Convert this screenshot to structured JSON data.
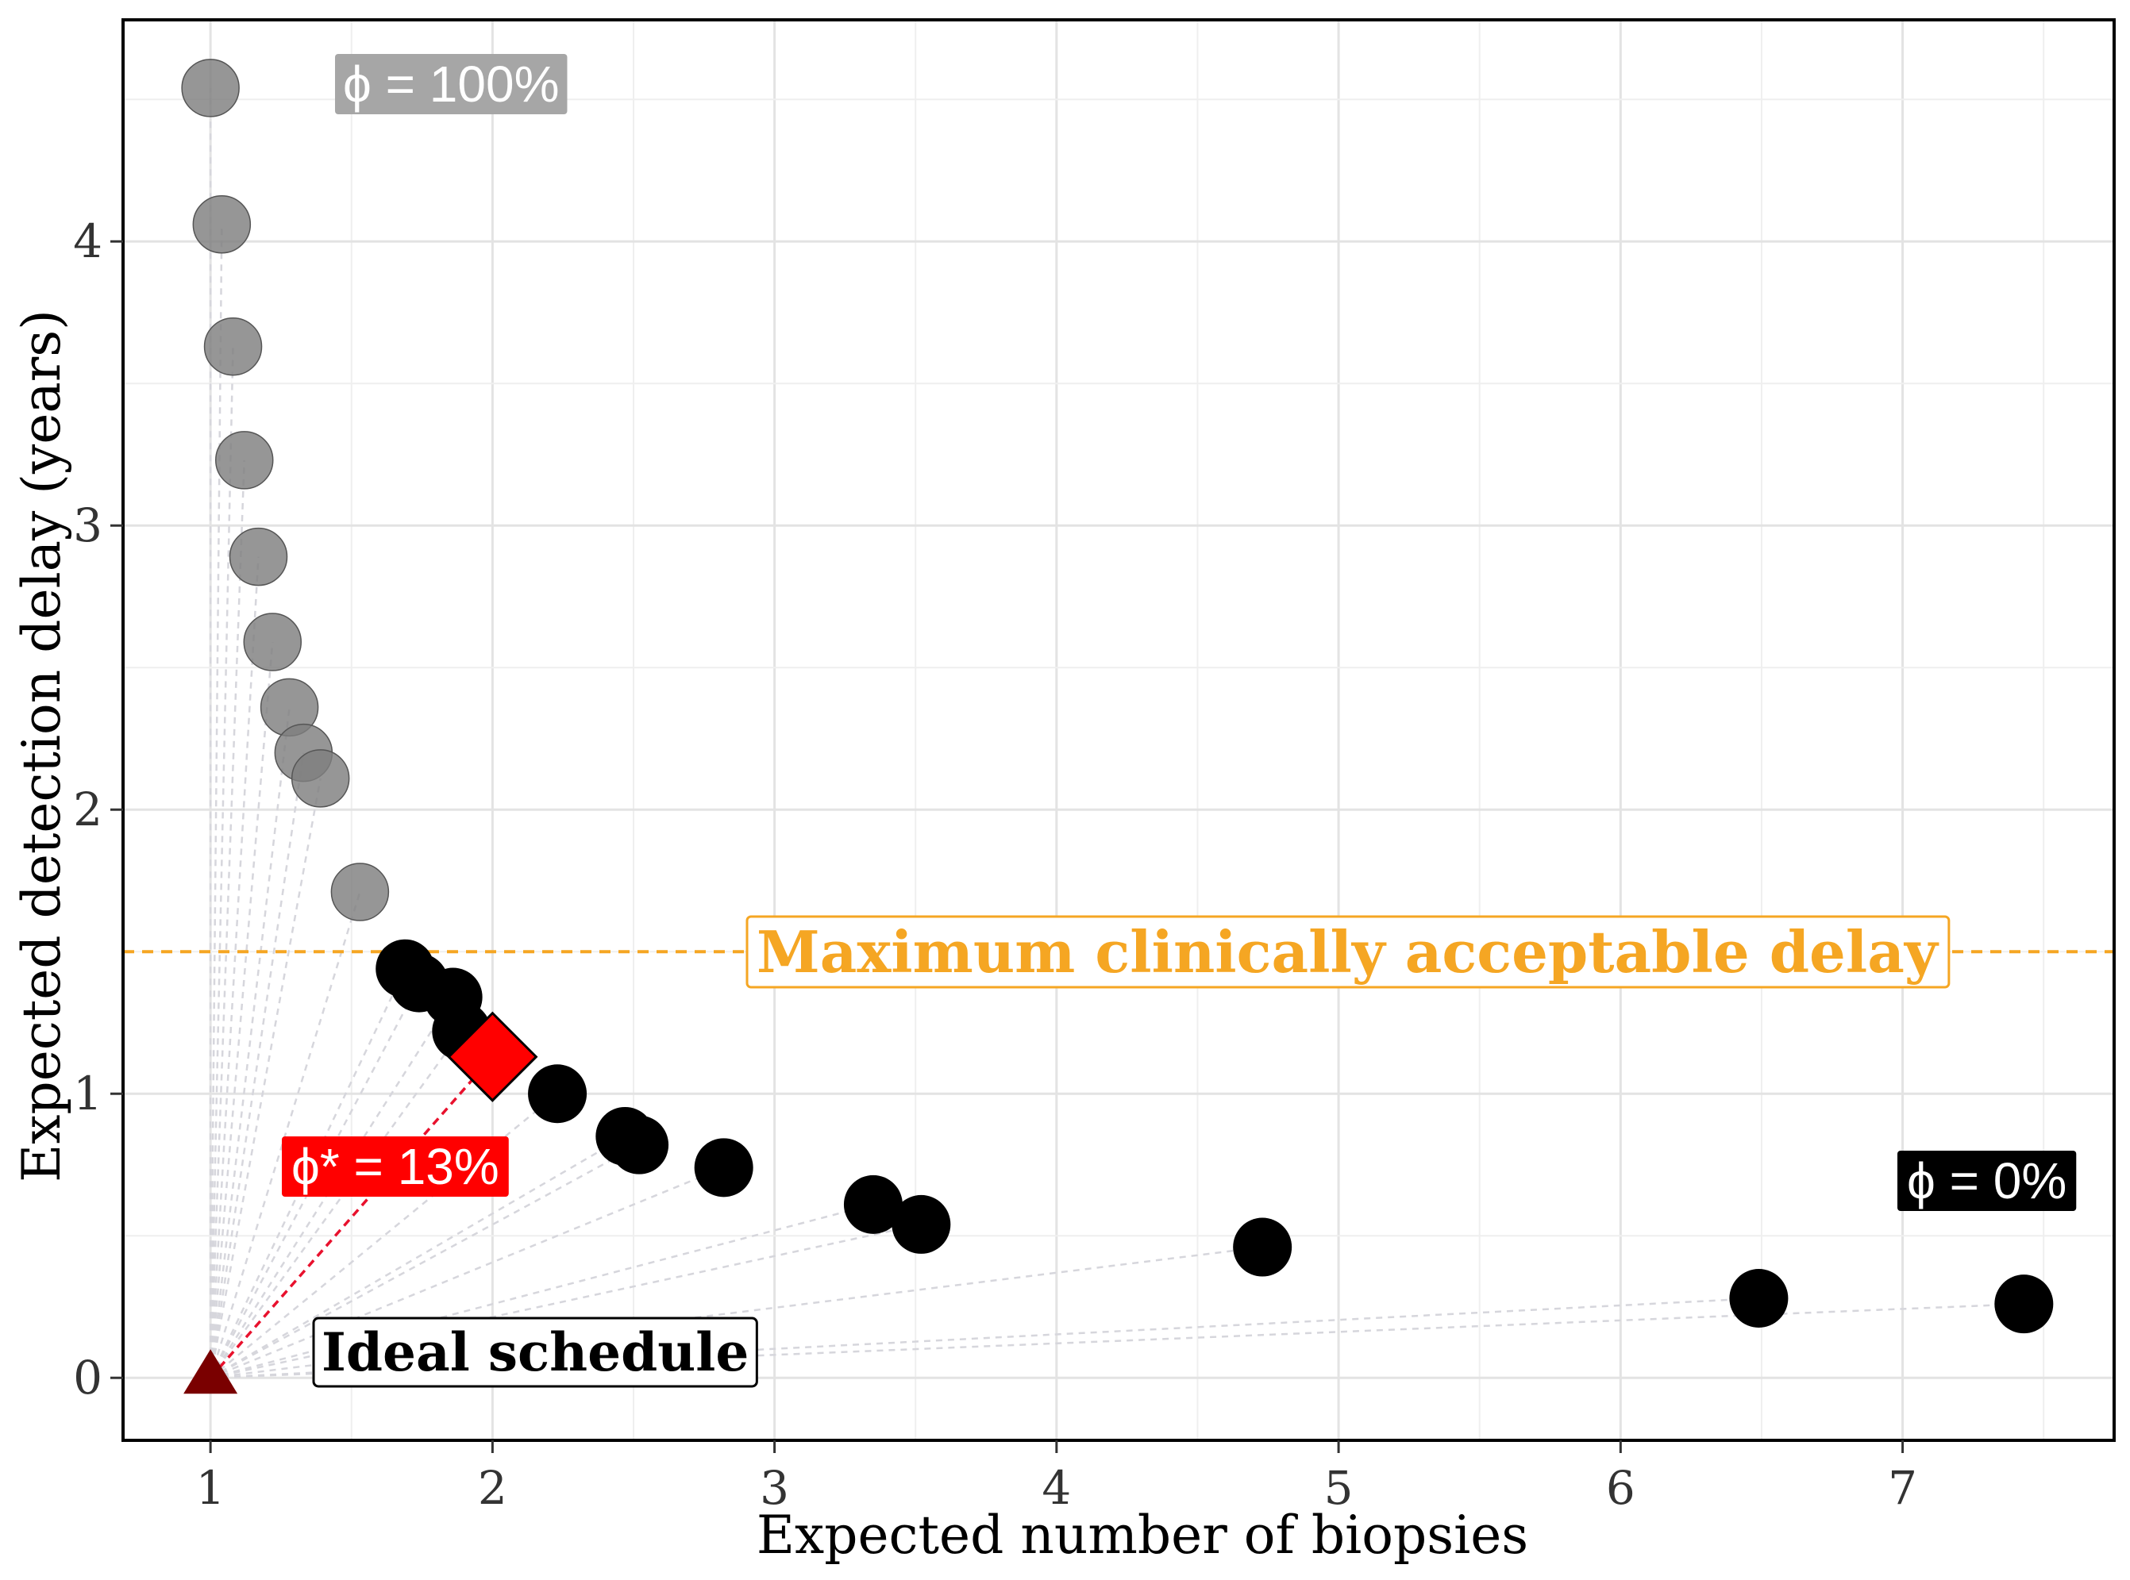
{
  "chart_data": {
    "type": "scatter",
    "xlabel": "Expected number of biopsies",
    "ylabel": "Expected detection delay (years)",
    "xlim": [
      0.69,
      7.75
    ],
    "ylim": [
      -0.22,
      4.78
    ],
    "xticks": [
      1,
      2,
      3,
      4,
      5,
      6,
      7
    ],
    "yticks": [
      0,
      1,
      2,
      3,
      4
    ],
    "grid": true,
    "series": [
      {
        "points": [
          [
            1.0,
            4.54
          ],
          [
            1.04,
            4.06
          ],
          [
            1.08,
            3.63
          ],
          [
            1.12,
            3.23
          ],
          [
            1.17,
            2.89
          ],
          [
            1.22,
            2.59
          ],
          [
            1.28,
            2.36
          ],
          [
            1.33,
            2.2
          ],
          [
            1.39,
            2.11
          ],
          [
            1.53,
            1.71
          ]
        ],
        "color": "#7f7f7f"
      },
      {
        "points": [
          [
            1.69,
            1.44
          ],
          [
            1.74,
            1.39
          ],
          [
            1.86,
            1.34
          ],
          [
            1.89,
            1.22
          ],
          [
            2.23,
            1.0
          ],
          [
            2.47,
            0.85
          ],
          [
            2.52,
            0.82
          ],
          [
            2.82,
            0.74
          ],
          [
            3.35,
            0.61
          ],
          [
            3.52,
            0.54
          ],
          [
            4.73,
            0.46
          ],
          [
            6.49,
            0.28
          ],
          [
            7.43,
            0.26
          ]
        ],
        "color": "#000000"
      },
      {
        "points": [
          [
            2.0,
            1.13
          ]
        ],
        "color": "#ff0000",
        "marker": "diamond"
      },
      {
        "points": [
          [
            1.0,
            0.0
          ]
        ],
        "color": "#7a0000",
        "marker": "triangle"
      }
    ],
    "reference_line": {
      "y": 1.5,
      "color": "#f5a623",
      "label": "Maximum clinically acceptable delay"
    },
    "annotations": {
      "phi_max": "ϕ = 100%",
      "phi_min": "ϕ = 0%",
      "phi_opt": "ϕ* = 13%",
      "ideal": "Ideal schedule"
    },
    "colors": {
      "phi_max_box": "#a6a6a6",
      "phi_min_box": "#000000",
      "phi_opt_box": "#ff0000",
      "optimal_link": "#e8112d"
    }
  }
}
